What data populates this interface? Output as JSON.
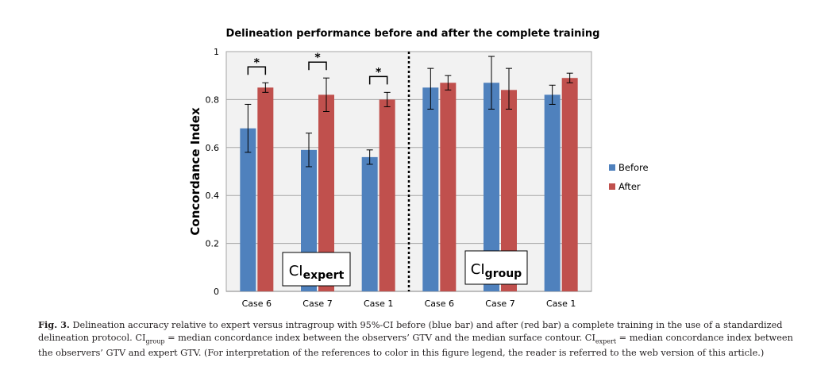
{
  "chart_data": {
    "type": "bar",
    "title": "Delineation performance before and after the complete training",
    "ylabel": "Concordance Index",
    "xlabel": "",
    "ylim": [
      0,
      1
    ],
    "yticks": [
      "0",
      "0.2",
      "0.4",
      "0.6",
      "0.8",
      "1"
    ],
    "categories": [
      "Case 6",
      "Case 7",
      "Case 1",
      "Case 6",
      "Case 7",
      "Case 1"
    ],
    "series": [
      {
        "name": "Before",
        "color": "#4f81bd",
        "values": [
          0.68,
          0.59,
          0.56,
          0.85,
          0.87,
          0.82
        ],
        "err_low": [
          0.58,
          0.52,
          0.53,
          0.76,
          0.76,
          0.78
        ],
        "err_high": [
          0.78,
          0.66,
          0.59,
          0.93,
          0.98,
          0.86
        ]
      },
      {
        "name": "After",
        "color": "#c0504d",
        "values": [
          0.85,
          0.82,
          0.8,
          0.87,
          0.84,
          0.89
        ],
        "err_low": [
          0.83,
          0.75,
          0.77,
          0.84,
          0.76,
          0.87
        ],
        "err_high": [
          0.87,
          0.89,
          0.83,
          0.9,
          0.93,
          0.91
        ]
      }
    ],
    "significance_marker": "*",
    "significant_categories": [
      0,
      1,
      2
    ],
    "group_labels": [
      {
        "main": "CI",
        "sub": "expert"
      },
      {
        "main": "CI",
        "sub": "group"
      }
    ],
    "grid": true,
    "legend": "right"
  },
  "caption": {
    "fig_label": "Fig. 3.",
    "p1": " Delineation accuracy relative to expert versus intragroup with 95%-CI before (blue bar) and after (red bar) a complete training in the use of a standardized delineation protocol. CI",
    "sub_group": "group",
    "p2": " = median concordance index between the observers’ GTV and the median surface contour. CI",
    "sub_expert": "expert",
    "p3": " = median concordance index between the observers’ GTV and expert GTV. (For interpretation of the references to color in this figure legend, the reader is referred to the web version of this article.)"
  }
}
